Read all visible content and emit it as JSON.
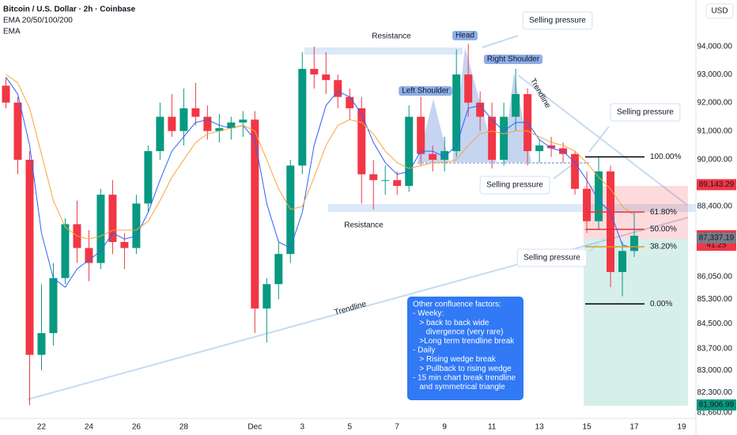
{
  "header": {
    "title": "Bitcoin / U.S. Dollar · 2h · Coinbase",
    "indicators": [
      "EMA 20/50/100/200",
      "EMA"
    ],
    "currency": "USD"
  },
  "chart_data": {
    "type": "candlestick",
    "open": [
      92600,
      92000,
      90000,
      83500,
      84200,
      86000,
      87800,
      87000,
      86500,
      88800,
      87200,
      87000,
      88500,
      90300,
      91500,
      91000,
      91800,
      91500,
      91000,
      91100,
      91300,
      91400,
      85000,
      85800,
      86800,
      89800,
      93200,
      93000,
      92800,
      92200,
      91800,
      89500,
      89300,
      89300,
      89100,
      91500,
      90200,
      90000,
      90300,
      93000,
      92000,
      91500,
      90000,
      91500,
      92300,
      90300,
      90500,
      90400,
      90200,
      89000,
      87900,
      89600,
      86200,
      86900
    ],
    "high": [
      92900,
      92200,
      90300,
      85800,
      86500,
      88000,
      88600,
      87600,
      89000,
      89300,
      87500,
      88800,
      90500,
      92000,
      92300,
      92500,
      92700,
      91900,
      91600,
      91500,
      91700,
      91700,
      86000,
      87200,
      90000,
      93800,
      94000,
      93800,
      93000,
      92500,
      92200,
      90000,
      89800,
      89600,
      91900,
      92200,
      90500,
      90800,
      93900,
      94100,
      92400,
      92000,
      92000,
      93200,
      92500,
      90700,
      90800,
      90600,
      90300,
      89600,
      90100,
      89800,
      87200,
      88200
    ],
    "low": [
      91800,
      89500,
      81900,
      83000,
      83800,
      85800,
      86500,
      85900,
      86300,
      86800,
      86300,
      86800,
      88200,
      90000,
      90800,
      90500,
      91200,
      90700,
      90600,
      90700,
      90800,
      84200,
      83900,
      85300,
      86500,
      89500,
      92500,
      92300,
      91800,
      91400,
      88500,
      88300,
      88800,
      88800,
      88900,
      89800,
      89600,
      89600,
      90100,
      91500,
      91000,
      89700,
      89800,
      91000,
      89800,
      89900,
      90100,
      89900,
      88800,
      87500,
      87600,
      85700,
      85400,
      86700
    ],
    "close": [
      92000,
      90000,
      83500,
      84200,
      86000,
      87800,
      87000,
      86500,
      88800,
      87200,
      87000,
      88500,
      90300,
      91500,
      91000,
      91800,
      91500,
      91000,
      91100,
      91300,
      91400,
      85000,
      85800,
      86800,
      89800,
      93200,
      93000,
      92800,
      92200,
      91800,
      89500,
      89300,
      89300,
      89100,
      91500,
      90200,
      90000,
      90300,
      93000,
      92000,
      91500,
      90000,
      91500,
      92300,
      90300,
      90500,
      90400,
      90200,
      89000,
      87900,
      89600,
      86200,
      86900,
      87409.99
    ],
    "up_color": "#089981",
    "down_color": "#f23645",
    "ema_lines": [
      {
        "color": "#2962ff",
        "values": [
          92900,
          92300,
          90500,
          87500,
          86000,
          85700,
          86300,
          86600,
          86900,
          87500,
          87300,
          87400,
          88200,
          89300,
          90300,
          90800,
          91300,
          91400,
          91200,
          91100,
          91200,
          90700,
          88500,
          87200,
          87000,
          88200,
          90500,
          91900,
          92400,
          92200,
          91600,
          90600,
          89900,
          89500,
          89600,
          90300,
          90300,
          90100,
          90500,
          91800,
          91900,
          91400,
          91000,
          91300,
          91300,
          90700,
          90400,
          90300,
          89900,
          89300,
          88600,
          88200,
          87100,
          87000
        ]
      },
      {
        "color": "#f7a43c",
        "values": [
          93000,
          92700,
          91800,
          90200,
          88600,
          87700,
          87400,
          87300,
          87400,
          87600,
          87600,
          87600,
          87900,
          88600,
          89400,
          90000,
          90600,
          90900,
          91000,
          91100,
          91200,
          91000,
          90000,
          89000,
          88300,
          88400,
          89400,
          90500,
          91200,
          91400,
          91300,
          90900,
          90300,
          89900,
          89700,
          89800,
          89900,
          89900,
          90000,
          90500,
          90900,
          91000,
          90900,
          91000,
          91000,
          90800,
          90600,
          90500,
          90300,
          89900,
          89400,
          89000,
          88400,
          88100
        ]
      }
    ],
    "log": true,
    "xlim": [
      0,
      58.7
    ],
    "xticks": [
      {
        "value": 3.5,
        "label": "22"
      },
      {
        "value": 7.5,
        "label": "24"
      },
      {
        "value": 11.5,
        "label": "26"
      },
      {
        "value": 15.5,
        "label": "28"
      },
      {
        "value": 21.5,
        "label": "Dec"
      },
      {
        "value": 25.5,
        "label": "3"
      },
      {
        "value": 29.5,
        "label": "5"
      },
      {
        "value": 33.5,
        "label": "7"
      },
      {
        "value": 37.5,
        "label": "9"
      },
      {
        "value": 41.5,
        "label": "11"
      },
      {
        "value": 45.5,
        "label": "13"
      },
      {
        "value": 49.5,
        "label": "15"
      },
      {
        "value": 53.5,
        "label": "17"
      },
      {
        "value": 57.5,
        "label": "19"
      }
    ],
    "ylim": [
      81510,
      95700
    ],
    "yticks": [
      {
        "value": 94000,
        "label": "94,000.00"
      },
      {
        "value": 93000,
        "label": "93,000.00"
      },
      {
        "value": 92000,
        "label": "92,000.00"
      },
      {
        "value": 91000,
        "label": "91,000.00"
      },
      {
        "value": 90000,
        "label": "90,000.00"
      },
      {
        "value": 88400,
        "label": "88,400.00"
      },
      {
        "value": 86050,
        "label": "86,050.00"
      },
      {
        "value": 85300,
        "label": "85,300.00"
      },
      {
        "value": 84500,
        "label": "84,500.00"
      },
      {
        "value": 83700,
        "label": "83,700.00"
      },
      {
        "value": 83000,
        "label": "83,000.00"
      },
      {
        "value": 82300,
        "label": "82,300.00"
      },
      {
        "value": 81660,
        "label": "81,660.00"
      }
    ],
    "price_labels": [
      {
        "value": 89143.29,
        "label": "89,143.29",
        "color": "#f23645"
      },
      {
        "value": 87409.99,
        "label": "87,409.99",
        "color": "#f23645"
      },
      {
        "value": 87337.19,
        "label": "87,337.19",
        "color": "#787b86"
      },
      {
        "value": 81906.99,
        "label": "81,906.99",
        "color": "#089981"
      }
    ],
    "countdown": "41:25",
    "fib_levels": [
      {
        "label": "100.00%",
        "value": 90100,
        "color": "#000000"
      },
      {
        "label": "61.80%",
        "value": 88210,
        "color": "#e0343f"
      },
      {
        "label": "50.00%",
        "value": 87625,
        "color": "#e0343f"
      },
      {
        "label": "38.20%",
        "value": 87040,
        "color": "#e39b1a"
      },
      {
        "label": "0.00%",
        "value": 85150,
        "color": "#000000"
      }
    ],
    "annotations": [
      "Selling pressure",
      "Selling pressure",
      "Selling pressure",
      "Selling pressure",
      "Resistance",
      "Resistance",
      "Trendline",
      "Trendline",
      "Head",
      "Left Shoulder",
      "Right Shoulder"
    ],
    "note": [
      "Other confluence factors:",
      "- Weeky:",
      "   > back to back wide",
      "      divergence (very rare)",
      "   >Long term trendline break",
      "- Daily",
      "   > Rising wedge break",
      "   > Pullback to rising wedge",
      "- 15 min chart break trendline",
      "   and symmetrical triangle"
    ]
  }
}
